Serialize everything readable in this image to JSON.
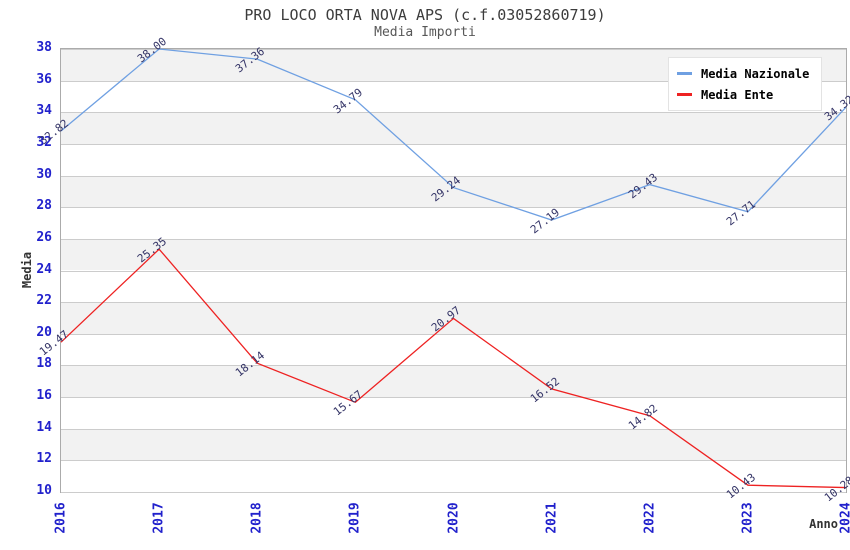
{
  "header": {
    "title": "PRO LOCO ORTA NOVA APS (c.f.03052860719)",
    "subtitle": "Media Importi"
  },
  "legend": {
    "items": [
      {
        "label": "Media Nazionale",
        "color": "#6FA0E2"
      },
      {
        "label": "Media Ente",
        "color": "#EE2222"
      }
    ]
  },
  "chart_data": {
    "type": "line",
    "title": "PRO LOCO ORTA NOVA APS (c.f.03052860719)",
    "subtitle": "Media Importi",
    "x": [
      "2016",
      "2017",
      "2018",
      "2019",
      "2020",
      "2021",
      "2022",
      "2023",
      "2024"
    ],
    "series": [
      {
        "name": "Media Nazionale",
        "color": "#6FA0E2",
        "values": [
          32.82,
          38.0,
          37.36,
          34.79,
          29.24,
          27.19,
          29.43,
          27.71,
          34.32
        ]
      },
      {
        "name": "Media Ente",
        "color": "#EE2222",
        "values": [
          19.47,
          25.35,
          18.14,
          15.67,
          20.97,
          16.52,
          14.82,
          10.43,
          10.28
        ]
      }
    ],
    "xlabel": "Anno",
    "ylabel": "Media",
    "ylim": [
      10,
      38
    ],
    "yticks": [
      10,
      12,
      14,
      16,
      18,
      20,
      22,
      24,
      26,
      28,
      30,
      32,
      34,
      36,
      38
    ],
    "grid": true,
    "bands": true,
    "legend_position": "top-right",
    "label_decimals": 2,
    "colors": {
      "tick_label": "#2121cc",
      "data_label": "#333366",
      "band_fill": "#f2f2f2",
      "gridline": "#cccccc",
      "plot_border": "#ababab",
      "title": "#3c3c3c",
      "subtitle": "#575757",
      "axis_title": "#333333"
    }
  }
}
